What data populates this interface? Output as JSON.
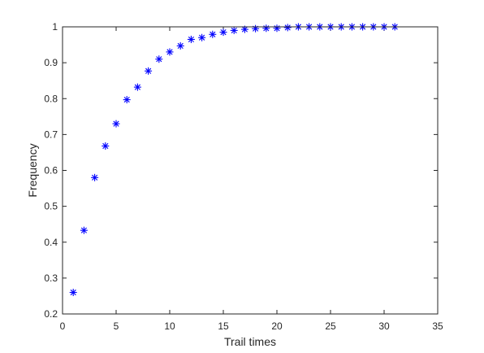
{
  "chart_data": {
    "type": "scatter",
    "title": "",
    "xlabel": "Trail times",
    "ylabel": "Frequency",
    "xlim": [
      0,
      35
    ],
    "ylim": [
      0.2,
      1.0
    ],
    "xticks": [
      0,
      5,
      10,
      15,
      20,
      25,
      30,
      35
    ],
    "yticks": [
      0.2,
      0.3,
      0.4,
      0.5,
      0.6,
      0.7,
      0.8,
      0.9,
      1
    ],
    "xtick_labels": [
      "0",
      "5",
      "10",
      "15",
      "20",
      "25",
      "30",
      "35"
    ],
    "ytick_labels": [
      "0.2",
      "0.3",
      "0.4",
      "0.5",
      "0.6",
      "0.7",
      "0.8",
      "0.9",
      "1"
    ],
    "grid": false,
    "marker": "asterisk",
    "marker_color": "#0000ff",
    "x": [
      1,
      2,
      3,
      4,
      5,
      6,
      7,
      8,
      9,
      10,
      11,
      12,
      13,
      14,
      15,
      16,
      17,
      18,
      19,
      20,
      21,
      22,
      23,
      24,
      25,
      26,
      27,
      28,
      29,
      30,
      31
    ],
    "y": [
      0.26,
      0.433,
      0.58,
      0.668,
      0.73,
      0.797,
      0.832,
      0.877,
      0.91,
      0.93,
      0.947,
      0.965,
      0.97,
      0.979,
      0.985,
      0.99,
      0.993,
      0.995,
      0.996,
      0.996,
      0.998,
      1.0,
      1.0,
      1.0,
      1.0,
      1.0,
      1.0,
      1.0,
      1.0,
      1.0,
      1.0
    ]
  }
}
